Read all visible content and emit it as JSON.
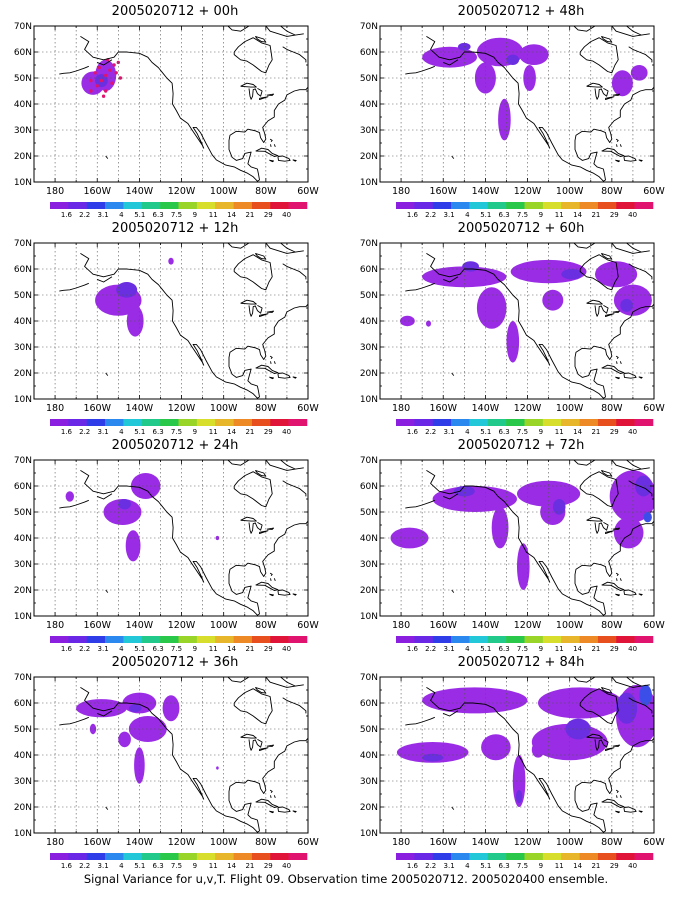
{
  "figure": {
    "caption": "Signal Variance for u,v,T. Flight 09. Observation time 2005020712. 2005020400 ensemble.",
    "lat_labels": [
      "10N",
      "20N",
      "30N",
      "40N",
      "50N",
      "60N",
      "70N"
    ],
    "lon_labels": [
      "180",
      "160W",
      "140W",
      "120W",
      "100W",
      "80W",
      "60W"
    ],
    "colorbar": {
      "colors": [
        "#8a1fe0",
        "#6a28e6",
        "#2f3de8",
        "#2a88ee",
        "#22c7d8",
        "#21c98a",
        "#2ac84a",
        "#98d528",
        "#d7df2c",
        "#e8b62a",
        "#ee8a26",
        "#e84f1e",
        "#e01438",
        "#e0146e"
      ],
      "labels": [
        "1.6",
        "2.2",
        "3.1",
        "4",
        "5.1",
        "6.3",
        "7.5",
        "9",
        "11",
        "14",
        "21",
        "29",
        "40"
      ]
    },
    "colors": {
      "shade_low": "#9a2ce6",
      "shade_mid": "#6a2fe0",
      "shade_high": "#3b4fe8",
      "obs_point": "#e0146e"
    }
  },
  "panels": [
    {
      "title": "2005020712 + 00h",
      "forecast_hour": 0
    },
    {
      "title": "2005020712 + 48h",
      "forecast_hour": 48
    },
    {
      "title": "2005020712 + 12h",
      "forecast_hour": 12
    },
    {
      "title": "2005020712 + 60h",
      "forecast_hour": 60
    },
    {
      "title": "2005020712 + 24h",
      "forecast_hour": 24
    },
    {
      "title": "2005020712 + 72h",
      "forecast_hour": 72
    },
    {
      "title": "2005020712 + 36h",
      "forecast_hour": 36
    },
    {
      "title": "2005020712 + 84h",
      "forecast_hour": 84
    }
  ],
  "blobs": {
    "p0": [
      {
        "lon": -162,
        "lat": 48,
        "rx": 5.5,
        "ry": 4.5,
        "level": 0
      },
      {
        "lon": -156,
        "lat": 51,
        "rx": 5,
        "ry": 6,
        "level": 0
      },
      {
        "lon": -158,
        "lat": 49,
        "rx": 3,
        "ry": 2.5,
        "level": 1
      }
    ],
    "p0_points": [
      {
        "lon": -163,
        "lat": 45
      },
      {
        "lon": -160,
        "lat": 47
      },
      {
        "lon": -158,
        "lat": 49
      },
      {
        "lon": -156,
        "lat": 51
      },
      {
        "lon": -154,
        "lat": 53
      },
      {
        "lon": -152,
        "lat": 55
      },
      {
        "lon": -155,
        "lat": 57
      },
      {
        "lon": -150,
        "lat": 56
      },
      {
        "lon": -151,
        "lat": 52
      },
      {
        "lon": -153,
        "lat": 48
      },
      {
        "lon": -156,
        "lat": 45
      },
      {
        "lon": -159,
        "lat": 54
      },
      {
        "lon": -161,
        "lat": 52
      },
      {
        "lon": -149,
        "lat": 50
      },
      {
        "lon": -157,
        "lat": 43
      },
      {
        "lon": -163,
        "lat": 49
      }
    ],
    "p12": [
      {
        "lon": -150,
        "lat": 48,
        "rx": 11,
        "ry": 6,
        "level": 0
      },
      {
        "lon": -142,
        "lat": 40,
        "rx": 4,
        "ry": 6,
        "level": 0
      },
      {
        "lon": -146,
        "lat": 52,
        "rx": 5,
        "ry": 3,
        "level": 1
      },
      {
        "lon": -125,
        "lat": 63,
        "rx": 1.3,
        "ry": 1.3,
        "level": 0
      }
    ],
    "p24": [
      {
        "lon": -173,
        "lat": 56,
        "rx": 2,
        "ry": 2,
        "level": 0
      },
      {
        "lon": -148,
        "lat": 50,
        "rx": 9,
        "ry": 5,
        "level": 0
      },
      {
        "lon": -143,
        "lat": 37,
        "rx": 3.5,
        "ry": 6,
        "level": 0
      },
      {
        "lon": -137,
        "lat": 60,
        "rx": 7,
        "ry": 5,
        "level": 0
      },
      {
        "lon": -147,
        "lat": 53,
        "rx": 3,
        "ry": 2,
        "level": 1
      },
      {
        "lon": -103,
        "lat": 40,
        "rx": 0.8,
        "ry": 0.8,
        "level": 0
      }
    ],
    "p36": [
      {
        "lon": -158,
        "lat": 58,
        "rx": 12,
        "ry": 3.5,
        "level": 0
      },
      {
        "lon": -140,
        "lat": 60,
        "rx": 8,
        "ry": 4,
        "level": 0
      },
      {
        "lon": -162,
        "lat": 50,
        "rx": 1.5,
        "ry": 2,
        "level": 0
      },
      {
        "lon": -136,
        "lat": 50,
        "rx": 9,
        "ry": 5,
        "level": 0
      },
      {
        "lon": -147,
        "lat": 46,
        "rx": 3,
        "ry": 3,
        "level": 0
      },
      {
        "lon": -140,
        "lat": 36,
        "rx": 2.5,
        "ry": 7,
        "level": 0
      },
      {
        "lon": -125,
        "lat": 58,
        "rx": 4,
        "ry": 5,
        "level": 0
      },
      {
        "lon": -142,
        "lat": 58,
        "rx": 3,
        "ry": 1.5,
        "level": 1
      },
      {
        "lon": -103,
        "lat": 35,
        "rx": 0.6,
        "ry": 0.6,
        "level": 0
      }
    ],
    "p48": [
      {
        "lon": -157,
        "lat": 58,
        "rx": 13,
        "ry": 4,
        "level": 0
      },
      {
        "lon": -133,
        "lat": 60,
        "rx": 11,
        "ry": 5.5,
        "level": 0
      },
      {
        "lon": -117,
        "lat": 59,
        "rx": 7,
        "ry": 4,
        "level": 0
      },
      {
        "lon": -140,
        "lat": 50,
        "rx": 5,
        "ry": 6,
        "level": 0
      },
      {
        "lon": -131,
        "lat": 34,
        "rx": 3,
        "ry": 8,
        "level": 0
      },
      {
        "lon": -119,
        "lat": 50,
        "rx": 3,
        "ry": 5,
        "level": 0
      },
      {
        "lon": -75,
        "lat": 48,
        "rx": 5,
        "ry": 5,
        "level": 0
      },
      {
        "lon": -67,
        "lat": 52,
        "rx": 4,
        "ry": 3,
        "level": 0
      },
      {
        "lon": -150,
        "lat": 62,
        "rx": 3,
        "ry": 1.5,
        "level": 1
      },
      {
        "lon": -127,
        "lat": 57,
        "rx": 3,
        "ry": 2,
        "level": 1
      }
    ],
    "p60": [
      {
        "lon": -150,
        "lat": 57,
        "rx": 20,
        "ry": 4,
        "level": 0
      },
      {
        "lon": -110,
        "lat": 59,
        "rx": 18,
        "ry": 4.5,
        "level": 0
      },
      {
        "lon": -78,
        "lat": 58,
        "rx": 10,
        "ry": 5,
        "level": 0
      },
      {
        "lon": -70,
        "lat": 48,
        "rx": 9,
        "ry": 6,
        "level": 0
      },
      {
        "lon": -137,
        "lat": 45,
        "rx": 7,
        "ry": 8,
        "level": 0
      },
      {
        "lon": -127,
        "lat": 32,
        "rx": 3,
        "ry": 8,
        "level": 0
      },
      {
        "lon": -108,
        "lat": 48,
        "rx": 5,
        "ry": 4,
        "level": 0
      },
      {
        "lon": -177,
        "lat": 40,
        "rx": 3.5,
        "ry": 2,
        "level": 0
      },
      {
        "lon": -167,
        "lat": 39,
        "rx": 1.2,
        "ry": 1.2,
        "level": 0
      },
      {
        "lon": -147,
        "lat": 61,
        "rx": 4,
        "ry": 2,
        "level": 1
      },
      {
        "lon": -99,
        "lat": 58,
        "rx": 5,
        "ry": 2,
        "level": 1
      },
      {
        "lon": -73,
        "lat": 46,
        "rx": 3,
        "ry": 2.5,
        "level": 1
      }
    ],
    "p72": [
      {
        "lon": -145,
        "lat": 55,
        "rx": 20,
        "ry": 5,
        "level": 0
      },
      {
        "lon": -110,
        "lat": 57,
        "rx": 15,
        "ry": 5,
        "level": 0
      },
      {
        "lon": -70,
        "lat": 56,
        "rx": 11,
        "ry": 10,
        "level": 0
      },
      {
        "lon": -72,
        "lat": 42,
        "rx": 7,
        "ry": 6,
        "level": 0
      },
      {
        "lon": -176,
        "lat": 40,
        "rx": 9,
        "ry": 4,
        "level": 0
      },
      {
        "lon": -133,
        "lat": 44,
        "rx": 4,
        "ry": 8,
        "level": 0
      },
      {
        "lon": -122,
        "lat": 29,
        "rx": 3,
        "ry": 9,
        "level": 0
      },
      {
        "lon": -108,
        "lat": 50,
        "rx": 6,
        "ry": 5,
        "level": 0
      },
      {
        "lon": -150,
        "lat": 58,
        "rx": 5,
        "ry": 2,
        "level": 1
      },
      {
        "lon": -105,
        "lat": 52,
        "rx": 3,
        "ry": 3,
        "level": 1
      },
      {
        "lon": -65,
        "lat": 60,
        "rx": 4,
        "ry": 4,
        "level": 1
      },
      {
        "lon": -63,
        "lat": 48,
        "rx": 2,
        "ry": 2,
        "level": 2
      }
    ],
    "p84": [
      {
        "lon": -145,
        "lat": 61,
        "rx": 25,
        "ry": 5,
        "level": 0
      },
      {
        "lon": -95,
        "lat": 60,
        "rx": 20,
        "ry": 6,
        "level": 0
      },
      {
        "lon": -68,
        "lat": 55,
        "rx": 10,
        "ry": 12,
        "level": 0
      },
      {
        "lon": -100,
        "lat": 45,
        "rx": 18,
        "ry": 7,
        "level": 0
      },
      {
        "lon": -165,
        "lat": 41,
        "rx": 17,
        "ry": 4,
        "level": 0
      },
      {
        "lon": -135,
        "lat": 43,
        "rx": 7,
        "ry": 5,
        "level": 0
      },
      {
        "lon": -124,
        "lat": 30,
        "rx": 3,
        "ry": 10,
        "level": 0
      },
      {
        "lon": -115,
        "lat": 42,
        "rx": 3,
        "ry": 3,
        "level": 0
      },
      {
        "lon": -96,
        "lat": 50,
        "rx": 6,
        "ry": 4,
        "level": 1
      },
      {
        "lon": -73,
        "lat": 58,
        "rx": 5,
        "ry": 6,
        "level": 1
      },
      {
        "lon": -64,
        "lat": 63,
        "rx": 3,
        "ry": 4,
        "level": 2
      },
      {
        "lon": -124,
        "lat": 24,
        "rx": 1.5,
        "ry": 2.5,
        "level": 1
      },
      {
        "lon": -165,
        "lat": 39,
        "rx": 5,
        "ry": 1.5,
        "level": 1
      }
    ]
  },
  "blob_order": [
    "p0",
    "p48",
    "p12",
    "p60",
    "p24",
    "p72",
    "p36",
    "p84"
  ]
}
